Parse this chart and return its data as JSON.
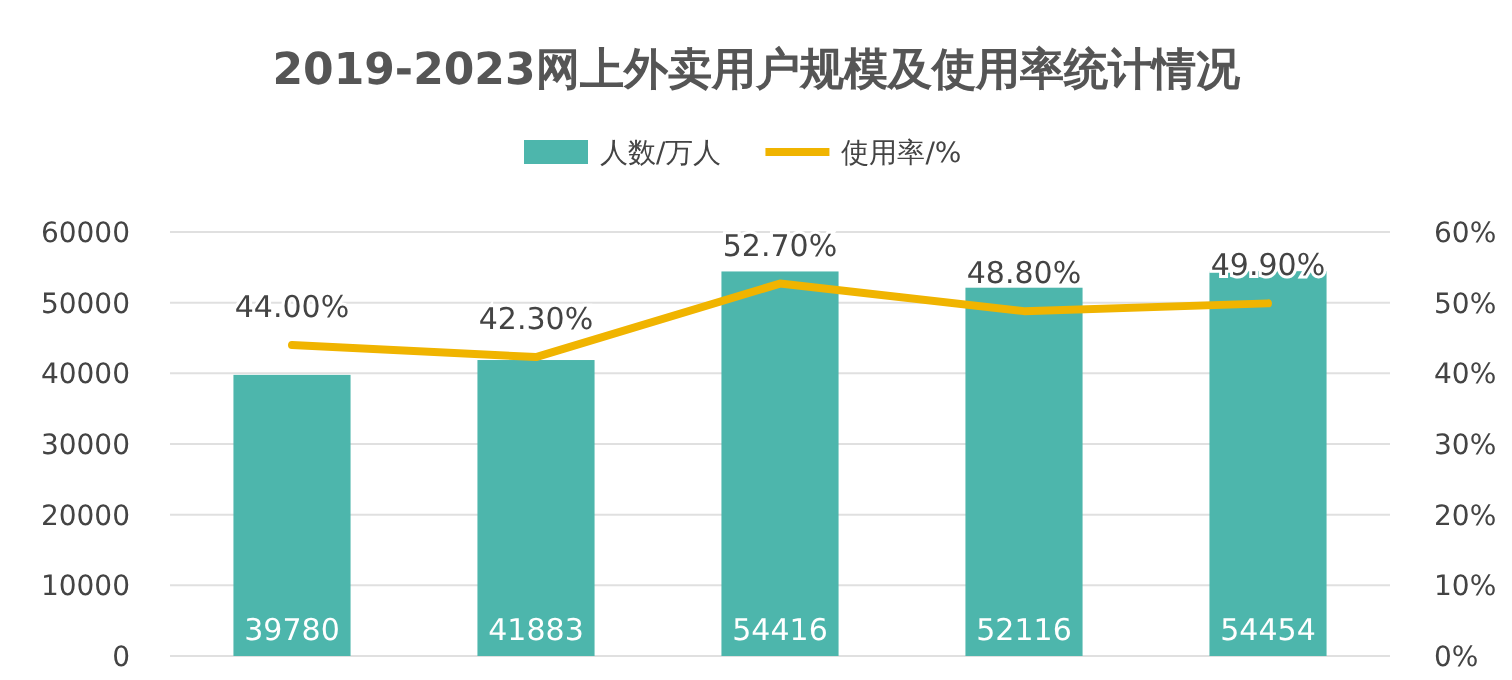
{
  "chart_data": {
    "type": "bar",
    "title": "2019-2023网上外卖用户规模及使用率统计情况",
    "categories": [
      null,
      null,
      null,
      null,
      null
    ],
    "series": [
      {
        "name": "人数/万人",
        "color": "#4db6ac",
        "values": [
          39780,
          41883,
          54416,
          52116,
          54454
        ],
        "value_labels": [
          "39780",
          "41883",
          "54416",
          "52116",
          "54454"
        ]
      },
      {
        "name": "使用率/%",
        "type": "line",
        "axis": "y2",
        "color": "#f0b400",
        "values": [
          44.0,
          42.3,
          52.7,
          48.8,
          49.9
        ],
        "value_labels": [
          "44.00%",
          "42.30%",
          "52.70%",
          "48.80%",
          "49.90%"
        ]
      }
    ],
    "ylim": [
      0,
      60000
    ],
    "yticks": [
      0,
      10000,
      20000,
      30000,
      40000,
      50000,
      60000
    ],
    "y2lim": [
      0,
      60
    ],
    "y2ticks": [
      {
        "value": 0,
        "label": "0%"
      },
      {
        "value": 10,
        "label": "10%"
      },
      {
        "value": 20,
        "label": "20%"
      },
      {
        "value": 30,
        "label": "30%"
      },
      {
        "value": 40,
        "label": "40%"
      },
      {
        "value": 50,
        "label": "50%"
      },
      {
        "value": 60,
        "label": "60%"
      }
    ],
    "grid": "y",
    "legend": "top"
  }
}
